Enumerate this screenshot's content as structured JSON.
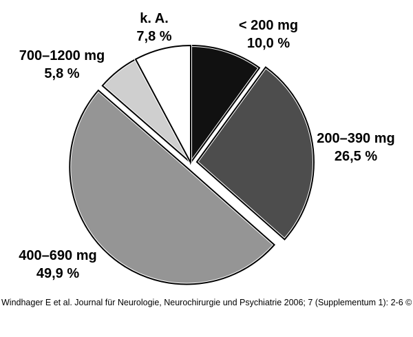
{
  "chart_data": {
    "type": "pie",
    "title": "",
    "start_angle_deg": 0,
    "direction": "clockwise",
    "slices": [
      {
        "label": "< 200 mg",
        "value": 10.0,
        "value_text": "10,0 %",
        "color": "#111111",
        "exploded": false
      },
      {
        "label": "200–390 mg",
        "value": 26.5,
        "value_text": "26,5 %",
        "color": "#4d4d4d",
        "exploded": true
      },
      {
        "label": "400–690 mg",
        "value": 49.9,
        "value_text": "49,9 %",
        "color": "#959595",
        "exploded": true
      },
      {
        "label": "700–1200 mg",
        "value": 5.8,
        "value_text": "5,8 %",
        "color": "#cfcfcf",
        "exploded": false
      },
      {
        "label": "k. A.",
        "value": 7.8,
        "value_text": "7,8 %",
        "color": "#ffffff",
        "exploded": false
      }
    ]
  },
  "citation": "Windhager E et al. Journal für Neurologie, Neurochirurgie und Psychiatrie 2006; 7 (Supplementum 1): 2-6 ©"
}
